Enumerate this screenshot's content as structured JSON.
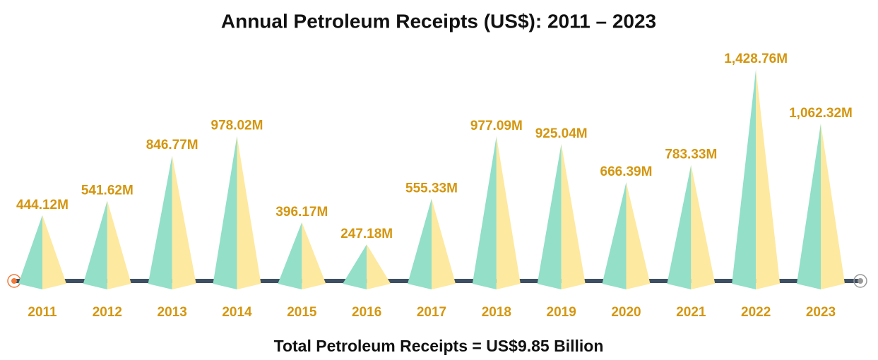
{
  "chart_data": {
    "type": "pyramid",
    "title": "Annual Petroleum Receipts (US$): 2011 – 2023",
    "categories": [
      "2011",
      "2012",
      "2013",
      "2014",
      "2015",
      "2016",
      "2017",
      "2018",
      "2019",
      "2020",
      "2021",
      "2022",
      "2023"
    ],
    "values": [
      444.12,
      541.62,
      846.77,
      978.02,
      396.17,
      247.18,
      555.33,
      977.09,
      925.04,
      666.39,
      783.33,
      1428.76,
      1062.32
    ],
    "value_labels": [
      "444.12M",
      "541.62M",
      "846.77M",
      "978.02M",
      "396.17M",
      "247.18M",
      "555.33M",
      "977.09M",
      "925.04M",
      "666.39M",
      "783.33M",
      "1,428.76M",
      "1,062.32M"
    ],
    "colors": [
      "#93dfc8",
      "#fde9a0"
    ],
    "label_color": "#d4960f",
    "annotation": "Total Petroleum Receipts = US$9.85 Billion"
  }
}
